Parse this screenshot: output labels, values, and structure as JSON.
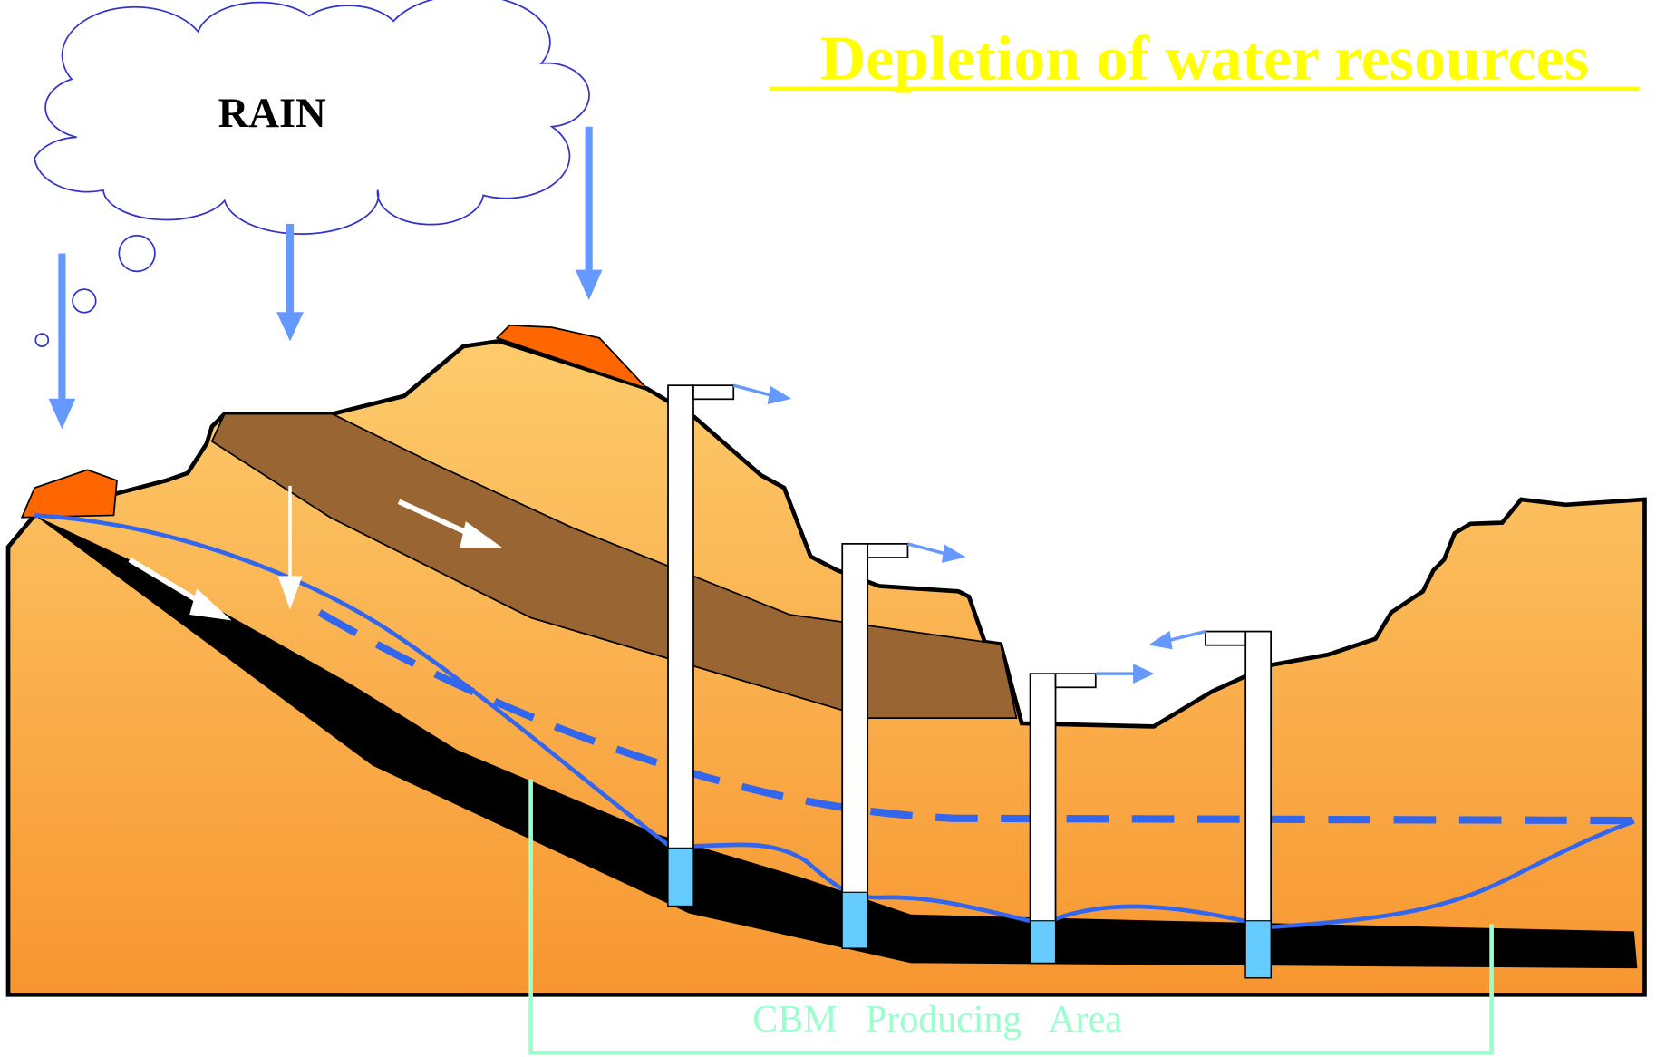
{
  "title": "Depletion  of  water  resources",
  "cloud_label": "RAIN",
  "area_label": "CBM   Producing   Area"
}
